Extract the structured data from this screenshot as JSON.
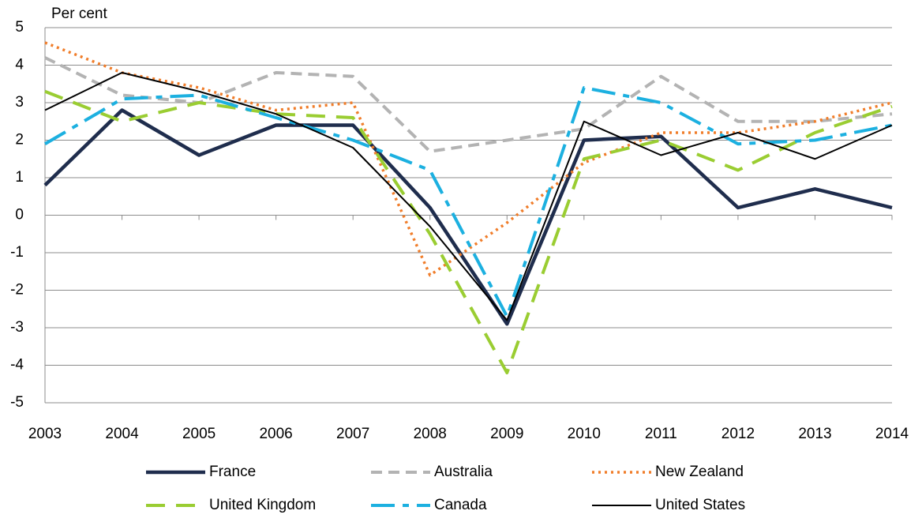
{
  "chart_data": {
    "type": "line",
    "y_axis_label": "Per cent",
    "categories": [
      "2003",
      "2004",
      "2005",
      "2006",
      "2007",
      "2008",
      "2009",
      "2010",
      "2011",
      "2012",
      "2013",
      "2014"
    ],
    "series": [
      {
        "name": "France",
        "color": "#1f2d4d",
        "line_style": "solid-thick",
        "values": [
          0.8,
          2.8,
          1.6,
          2.4,
          2.4,
          0.2,
          -2.9,
          2.0,
          2.1,
          0.2,
          0.7,
          0.2
        ]
      },
      {
        "name": "Australia",
        "color": "#b3b3b3",
        "line_style": "dashed",
        "values": [
          4.2,
          3.2,
          3.0,
          3.8,
          3.7,
          1.7,
          2.0,
          2.3,
          3.7,
          2.5,
          2.5,
          2.7
        ]
      },
      {
        "name": "New Zealand",
        "color": "#f07d2a",
        "line_style": "dotted",
        "values": [
          4.6,
          3.8,
          3.4,
          2.8,
          3.0,
          -1.6,
          -0.2,
          1.4,
          2.2,
          2.2,
          2.5,
          3.0
        ]
      },
      {
        "name": "United Kingdom",
        "color": "#9acd32",
        "line_style": "long-dash",
        "values": [
          3.3,
          2.5,
          3.0,
          2.7,
          2.6,
          -0.5,
          -4.2,
          1.5,
          2.0,
          1.2,
          2.2,
          2.9
        ]
      },
      {
        "name": "Canada",
        "color": "#1cb0e0",
        "line_style": "dash",
        "values": [
          1.9,
          3.1,
          3.2,
          2.6,
          2.0,
          1.2,
          -2.7,
          3.4,
          3.0,
          1.9,
          2.0,
          2.4
        ]
      },
      {
        "name": "United States",
        "color": "#000000",
        "line_style": "solid-thin",
        "values": [
          2.8,
          3.8,
          3.3,
          2.7,
          1.8,
          -0.3,
          -2.8,
          2.5,
          1.6,
          2.2,
          1.5,
          2.4
        ]
      }
    ],
    "ylim": [
      -5,
      5
    ],
    "yticks": [
      -5,
      -4,
      -3,
      -2,
      -1,
      0,
      1,
      2,
      3,
      4,
      5
    ],
    "grid": true
  }
}
